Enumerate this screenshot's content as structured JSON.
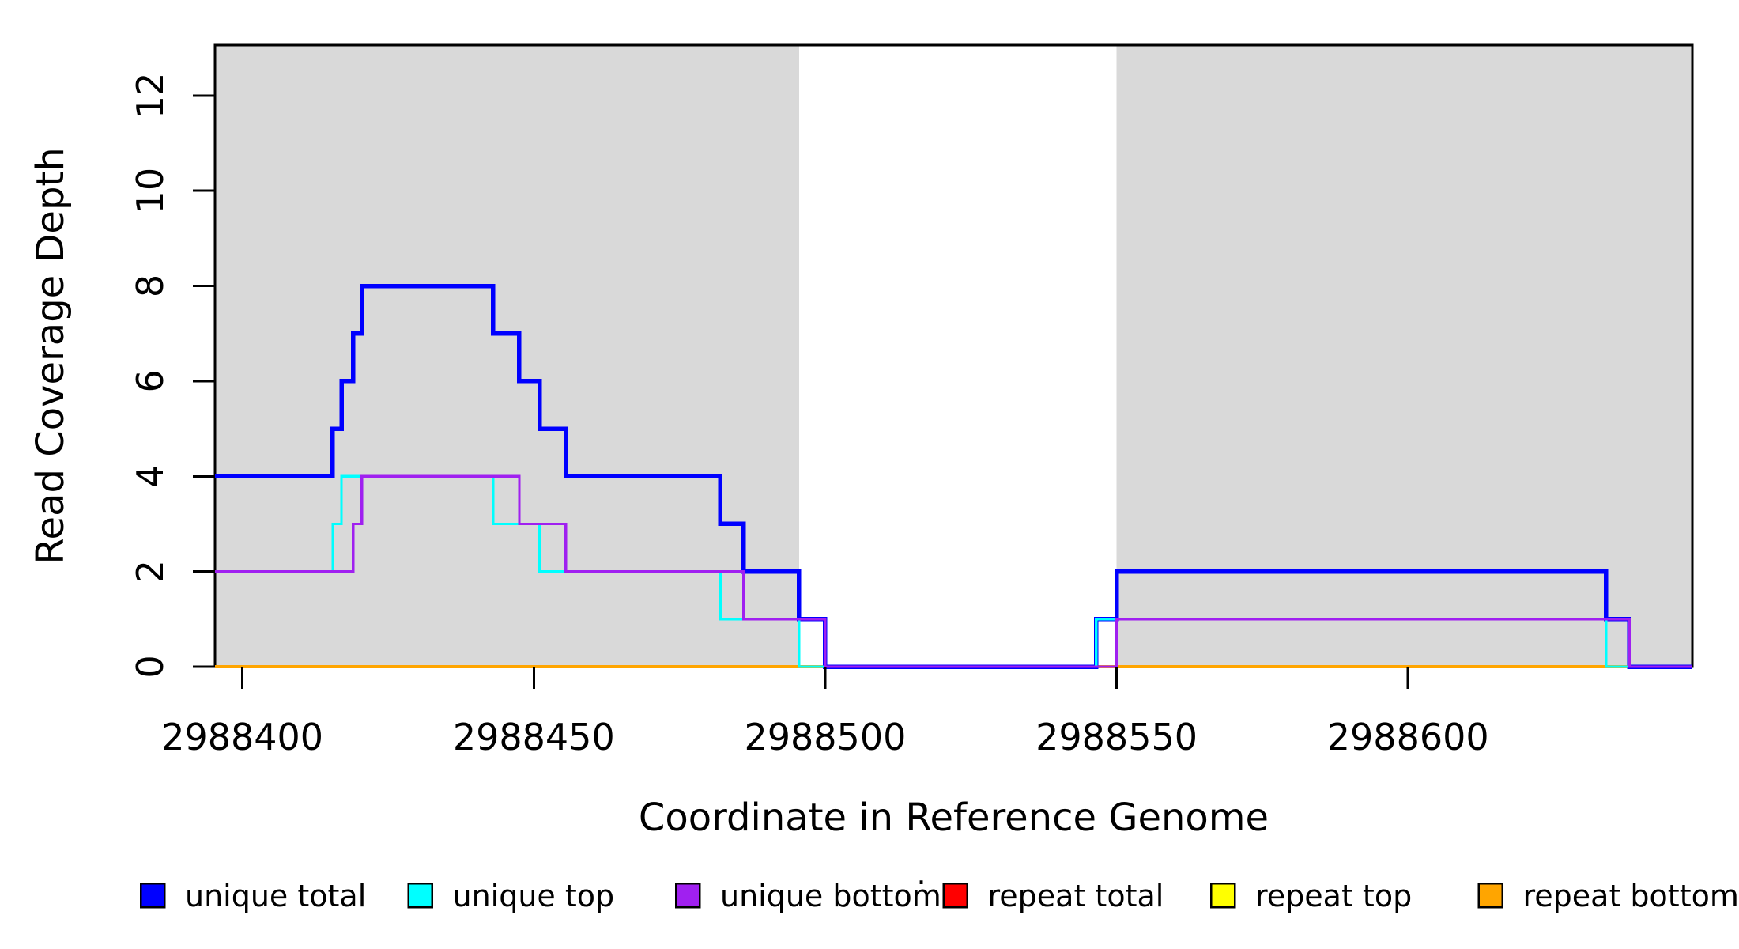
{
  "chart_data": {
    "type": "line",
    "style": "step-after",
    "title": "",
    "xlabel": "Coordinate in Reference Genome",
    "ylabel": "Read Coverage Depth",
    "xlim": [
      2988395.3,
      2988648.8
    ],
    "ylim": [
      0,
      13.06
    ],
    "x_ticks": [
      2988400,
      2988450,
      2988500,
      2988550,
      2988600
    ],
    "y_ticks": [
      0,
      2,
      4,
      6,
      8,
      10,
      12
    ],
    "grid": false,
    "box_color": "#000000",
    "shaded_region_color": "#d9d9d9",
    "shaded_regions": [
      {
        "name": "unique-mappability-block-left",
        "x0": 2988395.3,
        "x1": 2988495.5
      },
      {
        "name": "unique-mappability-block-right",
        "x0": 2988550.0,
        "x1": 2988648.8
      }
    ],
    "series": [
      {
        "name": "repeat total",
        "color": "#ff0000",
        "width": 3,
        "steps": [
          [
            2988395.3,
            0
          ],
          [
            2988648.8,
            0
          ]
        ]
      },
      {
        "name": "repeat top",
        "color": "#ffff00",
        "width": 3,
        "steps": [
          [
            2988395.3,
            0
          ],
          [
            2988648.8,
            0
          ]
        ]
      },
      {
        "name": "repeat bottom",
        "color": "#ffa500",
        "width": 4,
        "steps": [
          [
            2988395.3,
            0
          ],
          [
            2988648.8,
            0
          ]
        ]
      },
      {
        "name": "unique total",
        "color": "#0000ff",
        "width": 5.5,
        "steps": [
          [
            2988395.3,
            4
          ],
          [
            2988415.5,
            5
          ],
          [
            2988417,
            6
          ],
          [
            2988419,
            7
          ],
          [
            2988420.5,
            8
          ],
          [
            2988443,
            7
          ],
          [
            2988447.5,
            6
          ],
          [
            2988451,
            5
          ],
          [
            2988455.5,
            4
          ],
          [
            2988482,
            3
          ],
          [
            2988486,
            2
          ],
          [
            2988495.5,
            1
          ],
          [
            2988500,
            0
          ],
          [
            2988546.5,
            1
          ],
          [
            2988550,
            2
          ],
          [
            2988634,
            1
          ],
          [
            2988638,
            0
          ],
          [
            2988648.8,
            0
          ]
        ]
      },
      {
        "name": "unique top",
        "color": "#00ffff",
        "width": 3.2,
        "steps": [
          [
            2988395.3,
            2
          ],
          [
            2988415.5,
            3
          ],
          [
            2988417,
            4
          ],
          [
            2988443,
            3
          ],
          [
            2988451,
            2
          ],
          [
            2988482,
            1
          ],
          [
            2988495.5,
            0
          ],
          [
            2988546.5,
            1
          ],
          [
            2988634,
            0
          ],
          [
            2988648.8,
            0
          ]
        ]
      },
      {
        "name": "unique bottom",
        "color": "#a020f0",
        "width": 3.2,
        "steps": [
          [
            2988395.3,
            2
          ],
          [
            2988419,
            3
          ],
          [
            2988420.5,
            4
          ],
          [
            2988447.5,
            3
          ],
          [
            2988455.5,
            2
          ],
          [
            2988486,
            1
          ],
          [
            2988500,
            0
          ],
          [
            2988550,
            1
          ],
          [
            2988638,
            0
          ],
          [
            2988648.8,
            0
          ]
        ]
      }
    ],
    "legend": {
      "position": "bottom-horizontal",
      "items": [
        {
          "label": "unique total",
          "color": "#0000ff"
        },
        {
          "label": "unique top",
          "color": "#00ffff"
        },
        {
          "label": "unique bottom",
          "color": "#a020f0"
        },
        {
          "label": "repeat total",
          "color": "#ff0000"
        },
        {
          "label": "repeat top",
          "color": "#ffff00"
        },
        {
          "label": "repeat bottom",
          "color": "#ffa500"
        }
      ],
      "stray_mark": "·"
    }
  }
}
